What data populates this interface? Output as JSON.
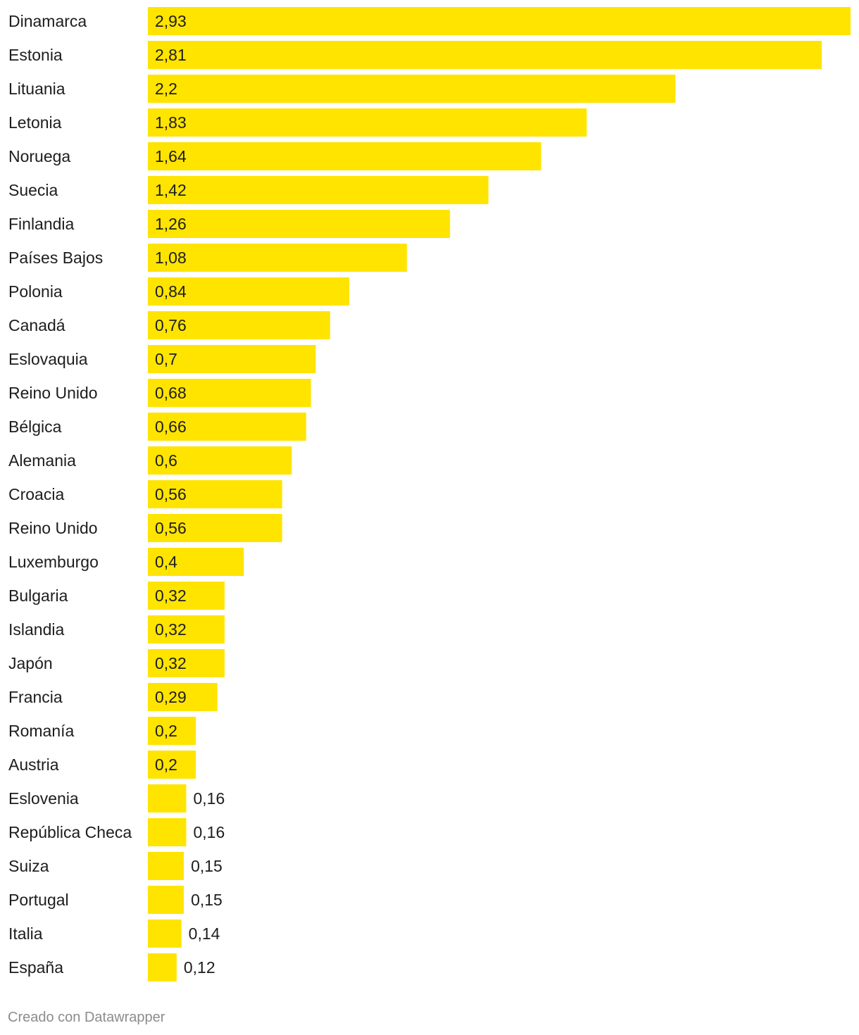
{
  "chart_data": {
    "type": "bar",
    "orientation": "horizontal",
    "bar_color": "#FFE400",
    "categories": [
      "Dinamarca",
      "Estonia",
      "Lituania",
      "Letonia",
      "Noruega",
      "Suecia",
      "Finlandia",
      "Países Bajos",
      "Polonia",
      "Canadá",
      "Eslovaquia",
      "Reino Unido",
      "Bélgica",
      "Alemania",
      "Croacia",
      "Reino Unido",
      "Luxemburgo",
      "Bulgaria",
      "Islandia",
      "Japón",
      "Francia",
      "Romanía",
      "Austria",
      "Eslovenia",
      "República Checa",
      "Suiza",
      "Portugal",
      "Italia",
      "España"
    ],
    "values": [
      2.93,
      2.81,
      2.2,
      1.83,
      1.64,
      1.42,
      1.26,
      1.08,
      0.84,
      0.76,
      0.7,
      0.68,
      0.66,
      0.6,
      0.56,
      0.56,
      0.4,
      0.32,
      0.32,
      0.32,
      0.29,
      0.2,
      0.2,
      0.16,
      0.16,
      0.15,
      0.15,
      0.14,
      0.12
    ],
    "value_labels": [
      "2,93",
      "2,81",
      "2,2",
      "1,83",
      "1,64",
      "1,42",
      "1,26",
      "1,08",
      "0,84",
      "0,76",
      "0,7",
      "0,68",
      "0,66",
      "0,6",
      "0,56",
      "0,56",
      "0,4",
      "0,32",
      "0,32",
      "0,32",
      "0,29",
      "0,2",
      "0,2",
      "0,16",
      "0,16",
      "0,15",
      "0,15",
      "0,14",
      "0,12"
    ],
    "xlim": [
      0,
      2.93
    ],
    "grid": false,
    "title": "",
    "xlabel": "",
    "ylabel": ""
  },
  "footer": {
    "credit": "Creado con Datawrapper"
  }
}
